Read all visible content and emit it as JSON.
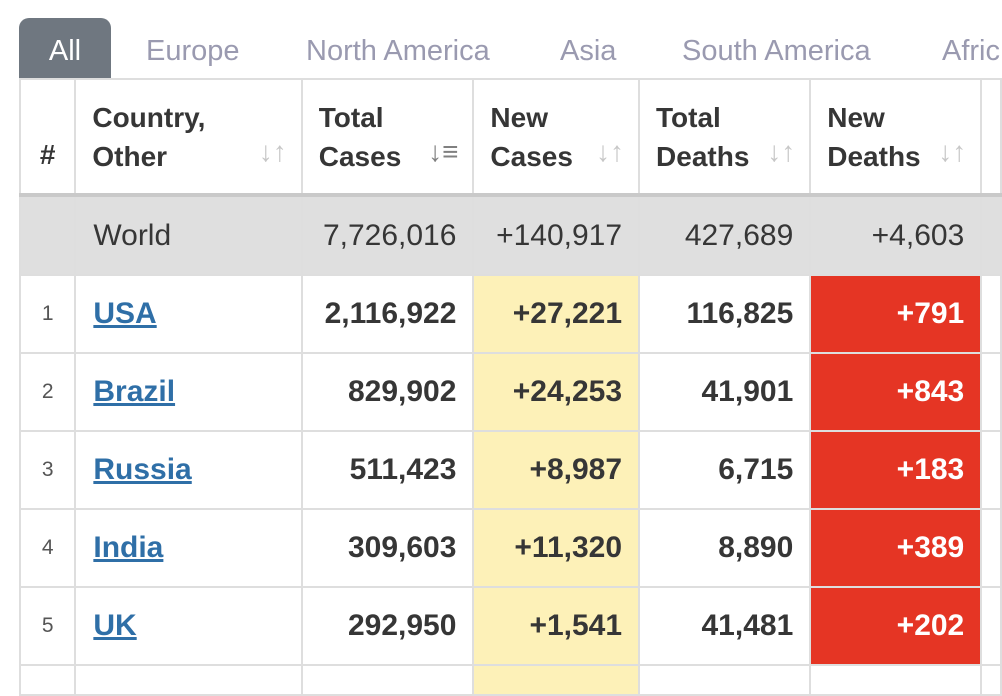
{
  "tabs": [
    {
      "label": "All",
      "active": true
    },
    {
      "label": "Europe"
    },
    {
      "label": "North America"
    },
    {
      "label": "Asia"
    },
    {
      "label": "South America"
    },
    {
      "label": "Afric"
    }
  ],
  "table": {
    "headers": {
      "index": "#",
      "country_line1": "Country,",
      "country_line2": "Other",
      "total_cases_line1": "Total",
      "total_cases_line2": "Cases",
      "new_cases_line1": "New",
      "new_cases_line2": "Cases",
      "total_deaths_line1": "Total",
      "total_deaths_line2": "Deaths",
      "new_deaths_line1": "New",
      "new_deaths_line2": "Deaths"
    },
    "sort_icons": {
      "country": "sort-icon",
      "total_cases": "sort-desc-icon",
      "new_cases": "sort-icon",
      "total_deaths": "sort-icon",
      "new_deaths": "sort-icon"
    },
    "world": {
      "index": "",
      "country": "World",
      "total_cases": "7,726,016",
      "new_cases": "+140,917",
      "total_deaths": "427,689",
      "new_deaths": "+4,603"
    },
    "rows": [
      {
        "index": "1",
        "country": "USA",
        "total_cases": "2,116,922",
        "new_cases": "+27,221",
        "total_deaths": "116,825",
        "new_deaths": "+791"
      },
      {
        "index": "2",
        "country": "Brazil",
        "total_cases": "829,902",
        "new_cases": "+24,253",
        "total_deaths": "41,901",
        "new_deaths": "+843"
      },
      {
        "index": "3",
        "country": "Russia",
        "total_cases": "511,423",
        "new_cases": "+8,987",
        "total_deaths": "6,715",
        "new_deaths": "+183"
      },
      {
        "index": "4",
        "country": "India",
        "total_cases": "309,603",
        "new_cases": "+11,320",
        "total_deaths": "8,890",
        "new_deaths": "+389"
      },
      {
        "index": "5",
        "country": "UK",
        "total_cases": "292,950",
        "new_cases": "+1,541",
        "total_deaths": "41,481",
        "new_deaths": "+202"
      }
    ]
  },
  "colors": {
    "tab_active_bg": "#6f7780",
    "link": "#2f6fa7",
    "new_cases_bg": "#fdf1b8",
    "new_deaths_bg": "#e53524",
    "world_row_bg": "#dfdfdf"
  }
}
